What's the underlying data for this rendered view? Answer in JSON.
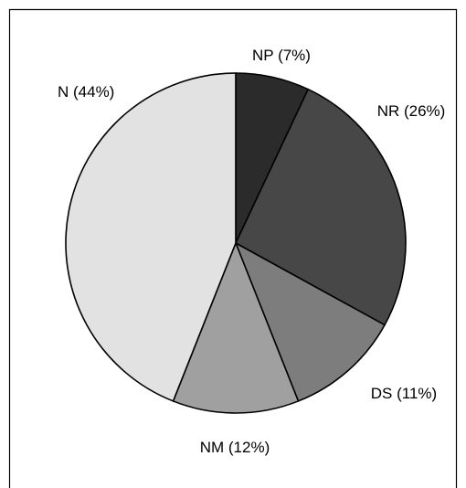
{
  "chart_data": {
    "type": "pie",
    "title": "",
    "slices": [
      {
        "label": "NP (7%)",
        "category": "NP",
        "value": 7,
        "color": "#2b2b2b"
      },
      {
        "label": "NR (26%)",
        "category": "NR",
        "value": 26,
        "color": "#474747"
      },
      {
        "label": "DS (11%)",
        "category": "DS",
        "value": 11,
        "color": "#7d7d7d"
      },
      {
        "label": "NM (12%)",
        "category": "NM",
        "value": 12,
        "color": "#a0a0a0"
      },
      {
        "label": "N (44%)",
        "category": "N",
        "value": 44,
        "color": "#e2e2e2"
      }
    ],
    "start_angle": "12 o'clock",
    "direction": "clockwise",
    "legend": "none"
  }
}
